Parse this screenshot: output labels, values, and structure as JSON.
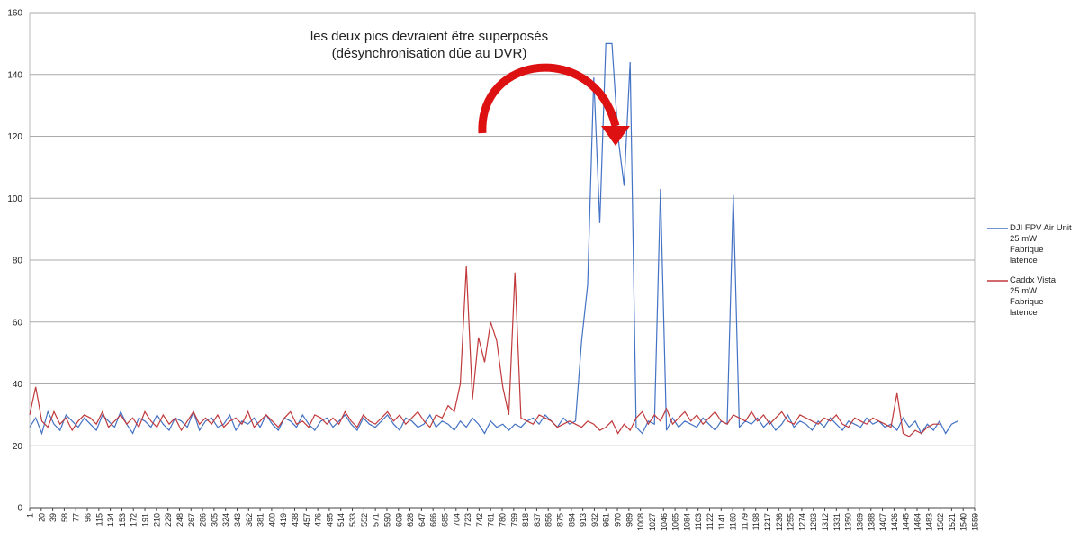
{
  "chart_data": {
    "type": "line",
    "annotations": [
      "les deux pics devraient être superposés",
      "(désynchronisation dûe au DVR)"
    ],
    "x": [
      1,
      11,
      21,
      31,
      41,
      51,
      61,
      71,
      81,
      91,
      101,
      111,
      121,
      131,
      141,
      151,
      161,
      171,
      181,
      191,
      201,
      211,
      221,
      231,
      241,
      251,
      261,
      271,
      281,
      291,
      301,
      311,
      321,
      331,
      341,
      351,
      361,
      371,
      381,
      391,
      401,
      411,
      421,
      431,
      441,
      451,
      461,
      471,
      481,
      491,
      501,
      511,
      521,
      531,
      541,
      551,
      561,
      571,
      581,
      591,
      601,
      611,
      621,
      631,
      641,
      651,
      661,
      671,
      681,
      691,
      701,
      711,
      721,
      731,
      741,
      751,
      761,
      771,
      781,
      791,
      801,
      811,
      821,
      831,
      841,
      851,
      861,
      871,
      881,
      891,
      901,
      911,
      921,
      931,
      941,
      951,
      961,
      971,
      981,
      991,
      1001,
      1011,
      1021,
      1031,
      1041,
      1051,
      1061,
      1071,
      1081,
      1091,
      1101,
      1111,
      1121,
      1131,
      1141,
      1151,
      1161,
      1171,
      1181,
      1191,
      1201,
      1211,
      1221,
      1231,
      1241,
      1251,
      1261,
      1271,
      1281,
      1291,
      1301,
      1311,
      1321,
      1331,
      1341,
      1351,
      1361,
      1371,
      1381,
      1391,
      1401,
      1411,
      1421,
      1431,
      1441,
      1451,
      1461,
      1471,
      1481,
      1491,
      1501,
      1511,
      1521,
      1531
    ],
    "series": [
      {
        "name": "DJI FPV Air Unit\n25 mW\n Fabrique\nlatence",
        "color": "#4472c4",
        "values": [
          26,
          29,
          24,
          31,
          27,
          25,
          30,
          28,
          26,
          29,
          27,
          25,
          30,
          28,
          26,
          31,
          27,
          24,
          29,
          28,
          26,
          30,
          27,
          25,
          29,
          28,
          26,
          31,
          25,
          28,
          29,
          26,
          27,
          30,
          25,
          28,
          27,
          29,
          26,
          30,
          27,
          25,
          29,
          28,
          26,
          30,
          27,
          25,
          28,
          29,
          26,
          28,
          30,
          27,
          25,
          29,
          27,
          26,
          28,
          30,
          27,
          25,
          29,
          28,
          26,
          27,
          30,
          26,
          28,
          27,
          25,
          28,
          26,
          29,
          27,
          24,
          28,
          26,
          27,
          25,
          27,
          26,
          28,
          29,
          27,
          30,
          28,
          26,
          29,
          27,
          28,
          54,
          72,
          139,
          92,
          150,
          150,
          120,
          104,
          144,
          26,
          24,
          28,
          27,
          103,
          25,
          29,
          26,
          28,
          27,
          26,
          29,
          27,
          25,
          28,
          27,
          101,
          26,
          28,
          27,
          29,
          26,
          28,
          25,
          27,
          30,
          26,
          28,
          27,
          25,
          28,
          26,
          29,
          27,
          25,
          28,
          27,
          26,
          29,
          27,
          28,
          26,
          27,
          25,
          29,
          26,
          28,
          24,
          27,
          25,
          28,
          24,
          27,
          28
        ]
      },
      {
        "name": "Caddx Vista\n25 mW\nFabrique\nlatence",
        "color": "#c0393b",
        "values": [
          30,
          39,
          28,
          26,
          31,
          27,
          29,
          25,
          28,
          30,
          29,
          27,
          31,
          26,
          28,
          30,
          27,
          29,
          26,
          31,
          28,
          26,
          30,
          27,
          29,
          25,
          28,
          31,
          27,
          29,
          27,
          30,
          26,
          28,
          29,
          27,
          31,
          26,
          28,
          30,
          28,
          26,
          29,
          31,
          27,
          28,
          26,
          30,
          29,
          27,
          29,
          27,
          31,
          28,
          26,
          30,
          28,
          27,
          29,
          31,
          28,
          30,
          27,
          29,
          31,
          28,
          26,
          30,
          29,
          33,
          31,
          40,
          78,
          35,
          55,
          47,
          60,
          54,
          39,
          30,
          76,
          29,
          28,
          27,
          30,
          29,
          28,
          26,
          27,
          28,
          27,
          26,
          28,
          27,
          25,
          26,
          28,
          24,
          27,
          25,
          29,
          31,
          27,
          30,
          28,
          32,
          27,
          29,
          31,
          28,
          30,
          27,
          29,
          31,
          28,
          27,
          30,
          29,
          28,
          31,
          28,
          30,
          27,
          29,
          31,
          28,
          27,
          30,
          29,
          28,
          27,
          29,
          28,
          30,
          27,
          26,
          29,
          28,
          27,
          29,
          28,
          27,
          26,
          37,
          24,
          23,
          25,
          24,
          26,
          27,
          27,
          null,
          null,
          null
        ]
      }
    ],
    "xlim": [
      1,
      1559
    ],
    "xticks": [
      1,
      20,
      39,
      58,
      77,
      96,
      115,
      134,
      153,
      172,
      191,
      210,
      229,
      248,
      267,
      286,
      305,
      324,
      343,
      362,
      381,
      400,
      419,
      438,
      457,
      476,
      495,
      514,
      533,
      552,
      571,
      590,
      609,
      628,
      647,
      666,
      685,
      704,
      723,
      742,
      761,
      780,
      799,
      818,
      837,
      856,
      875,
      894,
      913,
      932,
      951,
      970,
      989,
      1008,
      1027,
      1046,
      1065,
      1084,
      1103,
      1122,
      1141,
      1160,
      1179,
      1198,
      1217,
      1236,
      1255,
      1274,
      1293,
      1312,
      1331,
      1350,
      1369,
      1388,
      1407,
      1426,
      1445,
      1464,
      1483,
      1502,
      1521,
      1540,
      1559
    ],
    "ylim": [
      0,
      160
    ],
    "yticks": [
      0,
      20,
      40,
      60,
      80,
      100,
      120,
      140,
      160
    ],
    "grid": true,
    "legend": "right"
  }
}
